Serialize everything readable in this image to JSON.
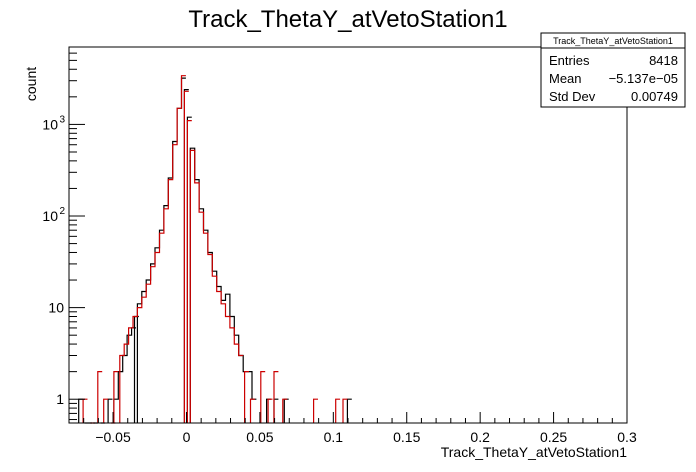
{
  "chart_data": {
    "type": "histogram",
    "title": "Track_ThetaY_atVetoStation1",
    "xlabel": "Track_ThetaY_atVetoStation1",
    "ylabel": "count",
    "yscale": "log",
    "xlim": [
      -0.08,
      0.3
    ],
    "ylim": [
      0.55,
      7000
    ],
    "xticks": [
      "−0.05",
      "0",
      "0.05",
      "0.1",
      "0.15",
      "0.2",
      "0.25",
      "0.3"
    ],
    "xtick_values": [
      -0.05,
      0,
      0.05,
      0.1,
      0.15,
      0.2,
      0.25,
      0.3
    ],
    "yticks": [
      {
        "label": "1",
        "value": 1
      },
      {
        "label": "10",
        "value": 10
      },
      {
        "label": "10",
        "sup": "2",
        "value": 100
      },
      {
        "label": "10",
        "sup": "3",
        "value": 1000
      }
    ],
    "grid": false,
    "series": [
      {
        "color": "#000000",
        "points": [
          [
            -0.0719,
            1
          ],
          [
            -0.0679,
            0
          ],
          [
            -0.0659,
            0
          ],
          [
            -0.0619,
            0
          ],
          [
            -0.0569,
            0
          ],
          [
            -0.0519,
            1
          ],
          [
            -0.0479,
            1
          ],
          [
            -0.0449,
            2
          ],
          [
            -0.0419,
            3
          ],
          [
            -0.0389,
            5
          ],
          [
            -0.0359,
            6
          ],
          [
            -0.0339,
            8
          ],
          [
            -0.0319,
            11
          ],
          [
            -0.0289,
            15
          ],
          [
            -0.0259,
            20
          ],
          [
            -0.0229,
            30
          ],
          [
            -0.0199,
            45
          ],
          [
            -0.0169,
            70
          ],
          [
            -0.0139,
            130
          ],
          [
            -0.0109,
            260
          ],
          [
            -0.0079,
            650
          ],
          [
            -0.0049,
            1500
          ],
          [
            -0.0019,
            3200
          ],
          [
            0.0001,
            2400
          ],
          [
            0.0021,
            1200
          ],
          [
            0.0041,
            550
          ],
          [
            0.0071,
            250
          ],
          [
            0.0101,
            120
          ],
          [
            0.0131,
            70
          ],
          [
            0.0161,
            40
          ],
          [
            0.0191,
            25
          ],
          [
            0.0221,
            17
          ],
          [
            0.0251,
            12
          ],
          [
            0.0281,
            14
          ],
          [
            0.0311,
            8
          ],
          [
            0.0341,
            5
          ],
          [
            0.0371,
            3
          ],
          [
            0.0401,
            2
          ],
          [
            0.0431,
            2
          ],
          [
            0.0461,
            1
          ],
          [
            0.0561,
            1
          ],
          [
            0.0611,
            1
          ],
          [
            0.0681,
            1
          ],
          [
            0.1111,
            1
          ]
        ]
      },
      {
        "color": "#cc0000",
        "points": [
          [
            -0.0689,
            1
          ],
          [
            -0.0639,
            0
          ],
          [
            -0.0589,
            2
          ],
          [
            -0.0549,
            1
          ],
          [
            -0.0499,
            0
          ],
          [
            -0.0479,
            2
          ],
          [
            -0.0439,
            3
          ],
          [
            -0.0409,
            4
          ],
          [
            -0.0379,
            6
          ],
          [
            -0.0349,
            8
          ],
          [
            -0.0319,
            10
          ],
          [
            -0.0289,
            13
          ],
          [
            -0.0259,
            18
          ],
          [
            -0.0229,
            28
          ],
          [
            -0.0199,
            40
          ],
          [
            -0.0169,
            65
          ],
          [
            -0.0139,
            120
          ],
          [
            -0.0109,
            250
          ],
          [
            -0.0079,
            600
          ],
          [
            -0.0049,
            1500
          ],
          [
            -0.0019,
            3400
          ],
          [
            0.0001,
            2300
          ],
          [
            0.0021,
            1100
          ],
          [
            0.0041,
            520
          ],
          [
            0.0071,
            230
          ],
          [
            0.0101,
            110
          ],
          [
            0.0131,
            65
          ],
          [
            0.0161,
            38
          ],
          [
            0.0191,
            22
          ],
          [
            0.0221,
            15
          ],
          [
            0.0251,
            11
          ],
          [
            0.0281,
            8
          ],
          [
            0.0311,
            6
          ],
          [
            0.0341,
            4
          ],
          [
            0.0371,
            3
          ],
          [
            0.0411,
            2
          ],
          [
            0.0451,
            1
          ],
          [
            0.0521,
            2
          ],
          [
            0.0571,
            1
          ],
          [
            0.0611,
            2
          ],
          [
            0.0671,
            1
          ],
          [
            0.0881,
            1
          ],
          [
            0.1031,
            1
          ],
          [
            0.1081,
            1
          ]
        ]
      }
    ],
    "stats_box": {
      "title": "Track_ThetaY_atVetoStation1",
      "rows": [
        {
          "label": "Entries",
          "value": "8418"
        },
        {
          "label": "Mean",
          "value": "−5.137e−05"
        },
        {
          "label": "Std Dev",
          "value": "0.00749"
        }
      ]
    }
  }
}
